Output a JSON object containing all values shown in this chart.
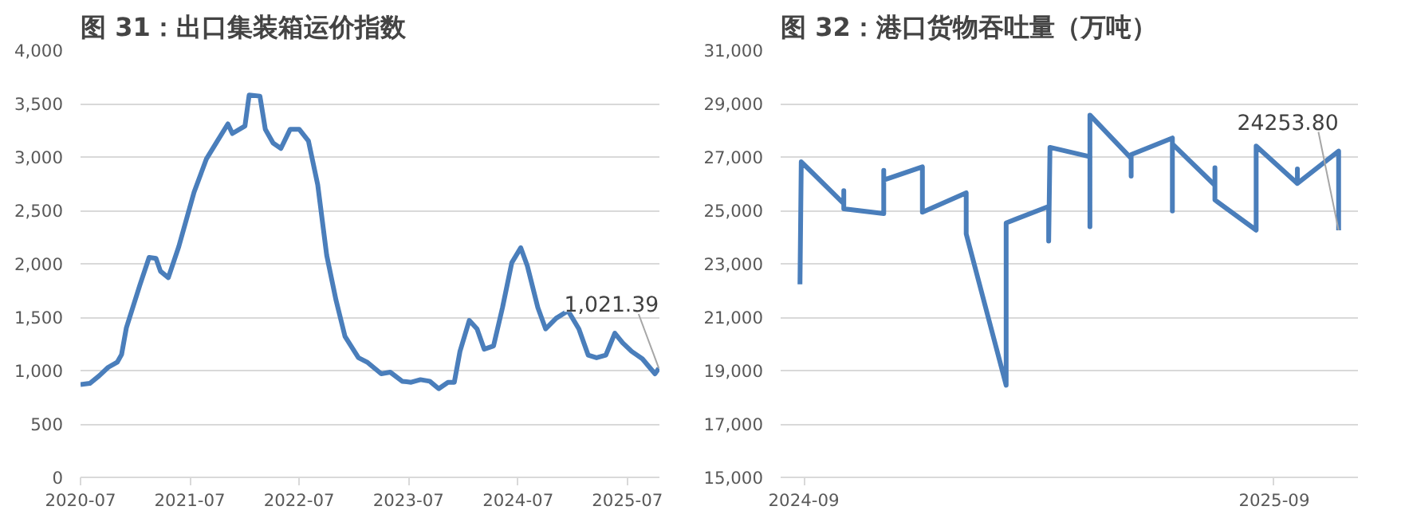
{
  "chart_data": [
    {
      "type": "line",
      "title": "图 31：出口集装箱运价指数",
      "color": "#4a7ebb",
      "x": [
        "2020-07-01",
        "2020-08-01",
        "2020-09-01",
        "2020-10-01",
        "2020-11-01",
        "2020-11-15",
        "2020-12-01",
        "2021-01-15",
        "2021-02-15",
        "2021-03-10",
        "2021-03-25",
        "2021-04-20",
        "2021-05-25",
        "2021-07-15",
        "2021-08-25",
        "2021-10-01",
        "2021-11-05",
        "2021-11-20",
        "2022-01-01",
        "2022-01-15",
        "2022-02-20",
        "2022-03-10",
        "2022-04-05",
        "2022-05-01",
        "2022-06-01",
        "2022-07-01",
        "2022-08-01",
        "2022-09-01",
        "2022-10-01",
        "2022-11-01",
        "2022-12-01",
        "2023-01-15",
        "2023-02-15",
        "2023-04-01",
        "2023-05-01",
        "2023-06-10",
        "2023-07-10",
        "2023-08-10",
        "2023-09-10",
        "2023-10-10",
        "2023-11-10",
        "2023-12-01",
        "2023-12-20",
        "2024-01-20",
        "2024-02-15",
        "2024-03-10",
        "2024-04-10",
        "2024-05-10",
        "2024-06-10",
        "2024-07-10",
        "2024-08-01",
        "2024-09-05",
        "2024-10-01",
        "2024-11-05",
        "2024-12-15",
        "2025-01-20",
        "2025-02-20",
        "2025-03-20",
        "2025-04-20",
        "2025-05-20",
        "2025-06-15",
        "2025-07-15",
        "2025-08-20",
        "2025-10-01",
        "2025-10-14"
      ],
      "values": [
        870,
        880,
        950,
        1030,
        1080,
        1150,
        1400,
        1800,
        2060,
        2050,
        1930,
        1870,
        2160,
        2670,
        2980,
        3150,
        3310,
        3220,
        3290,
        3580,
        3570,
        3260,
        3130,
        3080,
        3260,
        3260,
        3150,
        2740,
        2080,
        1660,
        1320,
        1120,
        1075,
        970,
        985,
        900,
        890,
        915,
        900,
        830,
        890,
        890,
        1180,
        1470,
        1390,
        1200,
        1230,
        1590,
        2010,
        2150,
        1980,
        1590,
        1390,
        1490,
        1560,
        1390,
        1145,
        1120,
        1145,
        1350,
        1260,
        1180,
        1110,
        970,
        1021.39
      ],
      "xlim": [
        "2020-07",
        "2025-10-16"
      ],
      "xticks": [
        "2020-07",
        "2021-07",
        "2022-07",
        "2023-07",
        "2024-07",
        "2025-07"
      ],
      "ylim": [
        0,
        4000
      ],
      "yticks": [
        0,
        {
          "value": 500,
          "label": "500"
        },
        {
          "value": 1000,
          "label": "1,000"
        },
        {
          "value": 1500,
          "label": "1,500"
        },
        {
          "value": 2000,
          "label": "2,000"
        },
        {
          "value": 2500,
          "label": "2,500"
        },
        {
          "value": 3000,
          "label": "3,000"
        },
        {
          "value": 3500,
          "label": "3,500"
        },
        {
          "value": 4000,
          "label": "4,000"
        }
      ],
      "grid": "y",
      "annotations": [
        {
          "text": "1,021.39",
          "x": "2025-10-14",
          "y": 1021.39
        }
      ]
    },
    {
      "type": "line",
      "title": "图 32：港口货物吞吐量（万吨）",
      "color": "#4a7ebb",
      "x": [
        "2024-08-29",
        "2024-08-30",
        "2024-10-02",
        "2024-10-02",
        "2024-10-02",
        "2024-11-02",
        "2024-11-02",
        "2024-11-02",
        "2024-12-02",
        "2024-12-02",
        "2025-01-05",
        "2025-01-05",
        "2025-02-05",
        "2025-02-05",
        "2025-03-10",
        "2025-03-10",
        "2025-03-11",
        "2025-04-11",
        "2025-04-11",
        "2025-04-11",
        "2025-05-13",
        "2025-05-13",
        "2025-05-13",
        "2025-06-14",
        "2025-06-14",
        "2025-06-14",
        "2025-07-17",
        "2025-07-17",
        "2025-07-17",
        "2025-08-18",
        "2025-08-18",
        "2025-09-19",
        "2025-09-19",
        "2025-09-19",
        "2025-10-21",
        "2025-10-21",
        "2025-10-21"
      ],
      "values": [
        22230,
        26820,
        25250,
        25740,
        25060,
        24880,
        26500,
        26140,
        26630,
        24930,
        25660,
        24120,
        18450,
        24530,
        25150,
        23850,
        27360,
        27010,
        24390,
        28570,
        26950,
        26280,
        27090,
        27710,
        24980,
        27490,
        25940,
        26600,
        25390,
        24260,
        27410,
        26010,
        26550,
        26010,
        27220,
        25600,
        24253.8
      ],
      "xlim": [
        "2024-08-14",
        "2025-11-05"
      ],
      "xticks": [
        "2024-09",
        "2025-09"
      ],
      "ylim": [
        15000,
        31000
      ],
      "yticks": [
        {
          "value": 15000,
          "label": "15,000"
        },
        {
          "value": 17000,
          "label": "17,000"
        },
        {
          "value": 19000,
          "label": "19,000"
        },
        {
          "value": 21000,
          "label": "21,000"
        },
        {
          "value": 23000,
          "label": "23,000"
        },
        {
          "value": 25000,
          "label": "25,000"
        },
        {
          "value": 27000,
          "label": "27,000"
        },
        {
          "value": 29000,
          "label": "29,000"
        },
        {
          "value": 31000,
          "label": "31,000"
        }
      ],
      "grid": "y",
      "annotations": [
        {
          "text": "24253.80",
          "x": "2025-10-21",
          "y": 24253.8
        }
      ]
    }
  ]
}
